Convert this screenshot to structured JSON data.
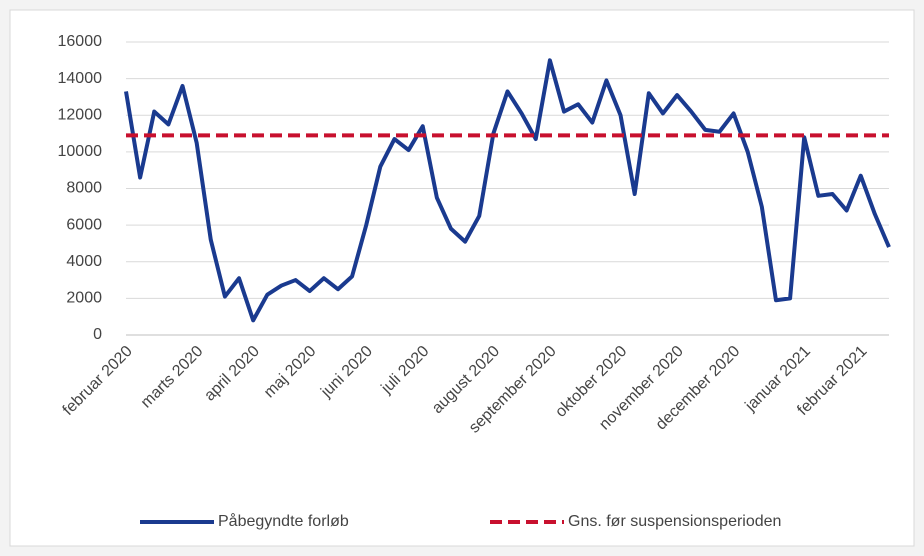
{
  "chart_data": {
    "type": "line",
    "categories": [
      "februar 2020",
      null,
      null,
      null,
      null,
      "marts 2020",
      null,
      null,
      null,
      "april 2020",
      null,
      null,
      null,
      "maj 2020",
      null,
      null,
      null,
      "juni 2020",
      null,
      null,
      null,
      "juli 2020",
      null,
      null,
      null,
      null,
      "august 2020",
      null,
      null,
      null,
      "september 2020",
      null,
      null,
      null,
      null,
      "oktober 2020",
      null,
      null,
      null,
      "november 2020",
      null,
      null,
      null,
      "december 2020",
      null,
      null,
      null,
      null,
      "januar 2021",
      null,
      null,
      null,
      "februar 2021",
      null,
      null
    ],
    "series": [
      {
        "name": "Påbegyndte forløb",
        "color": "#1a3a8f",
        "dashed": false,
        "values": [
          13300,
          8600,
          12200,
          11500,
          13600,
          10500,
          5200,
          2100,
          3100,
          800,
          2200,
          2700,
          3000,
          2400,
          3100,
          2500,
          3200,
          6000,
          9200,
          10700,
          10100,
          11400,
          7500,
          5800,
          5100,
          6500,
          11000,
          13300,
          12100,
          10700,
          15000,
          12200,
          12600,
          11600,
          13900,
          12000,
          7700,
          13200,
          12100,
          13100,
          12200,
          11200,
          11100,
          12100,
          10000,
          7000,
          1900,
          2000,
          10800,
          7600,
          7700,
          6800,
          8700,
          6600,
          4800
        ]
      },
      {
        "name": "Gns. før suspensionsperioden",
        "color": "#c8102e",
        "dashed": true,
        "values": [
          10900,
          10900,
          10900,
          10900,
          10900,
          10900,
          10900,
          10900,
          10900,
          10900,
          10900,
          10900,
          10900,
          10900,
          10900,
          10900,
          10900,
          10900,
          10900,
          10900,
          10900,
          10900,
          10900,
          10900,
          10900,
          10900,
          10900,
          10900,
          10900,
          10900,
          10900,
          10900,
          10900,
          10900,
          10900,
          10900,
          10900,
          10900,
          10900,
          10900,
          10900,
          10900,
          10900,
          10900,
          10900,
          10900,
          10900,
          10900,
          10900,
          10900,
          10900,
          10900,
          10900,
          10900,
          10900
        ]
      }
    ],
    "ylim": [
      0,
      16000
    ],
    "yticks": [
      0,
      2000,
      4000,
      6000,
      8000,
      10000,
      12000,
      14000,
      16000
    ],
    "grid": true,
    "legend": "bottom"
  }
}
